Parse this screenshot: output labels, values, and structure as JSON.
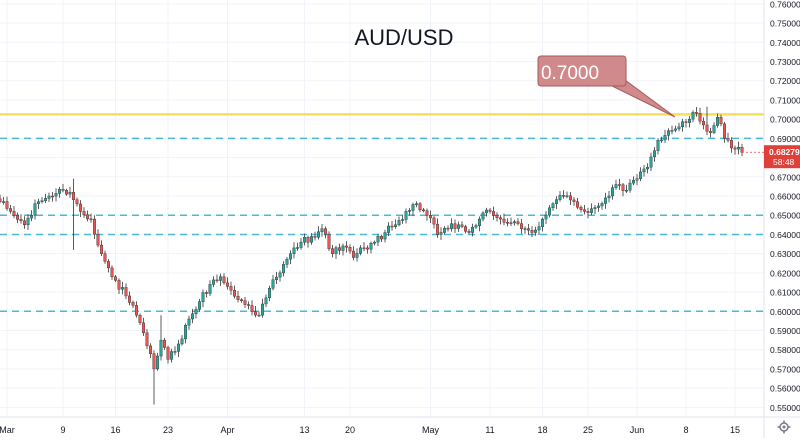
{
  "chart_data": {
    "type": "candlestick",
    "title": "AUD/USD",
    "annotation": {
      "text": "0.7000",
      "target_price": 0.7
    },
    "price_axis": {
      "min": 0.545,
      "max": 0.762,
      "ticks": [
        "0.55000",
        "0.56000",
        "0.57000",
        "0.58000",
        "0.59000",
        "0.60000",
        "0.61000",
        "0.62000",
        "0.63000",
        "0.64000",
        "0.65000",
        "0.66000",
        "0.67000",
        "0.68000",
        "0.69000",
        "0.70000",
        "0.71000",
        "0.72000",
        "0.73000",
        "0.74000",
        "0.75000",
        "0.76000"
      ]
    },
    "time_axis": {
      "ticks": [
        {
          "label": "Mar",
          "bar": 2
        },
        {
          "label": "9",
          "bar": 18
        },
        {
          "label": "16",
          "bar": 33
        },
        {
          "label": "23",
          "bar": 48
        },
        {
          "label": "Apr",
          "bar": 65
        },
        {
          "label": "13",
          "bar": 87
        },
        {
          "label": "20",
          "bar": 100
        },
        {
          "label": "May",
          "bar": 123
        },
        {
          "label": "11",
          "bar": 140
        },
        {
          "label": "18",
          "bar": 155
        },
        {
          "label": "25",
          "bar": 168
        },
        {
          "label": "Jun",
          "bar": 182
        },
        {
          "label": "8",
          "bar": 196
        },
        {
          "label": "15",
          "bar": 210
        }
      ]
    },
    "last_price": {
      "value": 0.68279,
      "label": "0.68279",
      "countdown": "58:48",
      "color": "#e0403a"
    },
    "horizontal_lines": [
      {
        "price": 0.7025,
        "style": "solid",
        "color": "#f4e15a"
      },
      {
        "price": 0.69,
        "style": "dashed",
        "color": "#4ab8d8"
      },
      {
        "price": 0.65,
        "style": "dashed",
        "color": "#4ab8d8"
      },
      {
        "price": 0.64,
        "style": "dashed",
        "color": "#4ab8d8"
      },
      {
        "price": 0.6,
        "style": "dashed",
        "color": "#4ab8d8"
      }
    ],
    "anchors": [
      [
        0,
        0.657
      ],
      [
        4,
        0.65
      ],
      [
        7,
        0.645
      ],
      [
        11,
        0.657
      ],
      [
        14,
        0.66
      ],
      [
        18,
        0.663
      ],
      [
        20,
        0.662
      ],
      [
        23,
        0.652
      ],
      [
        26,
        0.648
      ],
      [
        29,
        0.63
      ],
      [
        32,
        0.618
      ],
      [
        36,
        0.608
      ],
      [
        39,
        0.598
      ],
      [
        42,
        0.582
      ],
      [
        44,
        0.57
      ],
      [
        46,
        0.585
      ],
      [
        48,
        0.575
      ],
      [
        51,
        0.583
      ],
      [
        54,
        0.596
      ],
      [
        57,
        0.605
      ],
      [
        60,
        0.614
      ],
      [
        63,
        0.618
      ],
      [
        65,
        0.613
      ],
      [
        68,
        0.606
      ],
      [
        71,
        0.603
      ],
      [
        74,
        0.598
      ],
      [
        77,
        0.612
      ],
      [
        80,
        0.62
      ],
      [
        83,
        0.63
      ],
      [
        86,
        0.636
      ],
      [
        89,
        0.639
      ],
      [
        92,
        0.643
      ],
      [
        95,
        0.63
      ],
      [
        98,
        0.634
      ],
      [
        101,
        0.628
      ],
      [
        104,
        0.633
      ],
      [
        107,
        0.636
      ],
      [
        110,
        0.641
      ],
      [
        113,
        0.645
      ],
      [
        116,
        0.652
      ],
      [
        119,
        0.656
      ],
      [
        122,
        0.65
      ],
      [
        125,
        0.64
      ],
      [
        128,
        0.643
      ],
      [
        131,
        0.645
      ],
      [
        134,
        0.641
      ],
      [
        137,
        0.648
      ],
      [
        140,
        0.652
      ],
      [
        143,
        0.648
      ],
      [
        146,
        0.646
      ],
      [
        149,
        0.643
      ],
      [
        152,
        0.641
      ],
      [
        155,
        0.648
      ],
      [
        158,
        0.656
      ],
      [
        161,
        0.66
      ],
      [
        164,
        0.657
      ],
      [
        167,
        0.652
      ],
      [
        170,
        0.654
      ],
      [
        173,
        0.659
      ],
      [
        176,
        0.666
      ],
      [
        179,
        0.663
      ],
      [
        182,
        0.669
      ],
      [
        185,
        0.675
      ],
      [
        188,
        0.689
      ],
      [
        191,
        0.694
      ],
      [
        194,
        0.696
      ],
      [
        197,
        0.7
      ],
      [
        199,
        0.703
      ],
      [
        201,
        0.697
      ],
      [
        203,
        0.693
      ],
      [
        205,
        0.701
      ],
      [
        207,
        0.69
      ],
      [
        209,
        0.685
      ],
      [
        212,
        0.683
      ]
    ],
    "colors": {
      "up": "#26a69a",
      "down": "#ef5350",
      "wick": "#333333",
      "grid": "#f0f3fa"
    },
    "grid": true
  }
}
